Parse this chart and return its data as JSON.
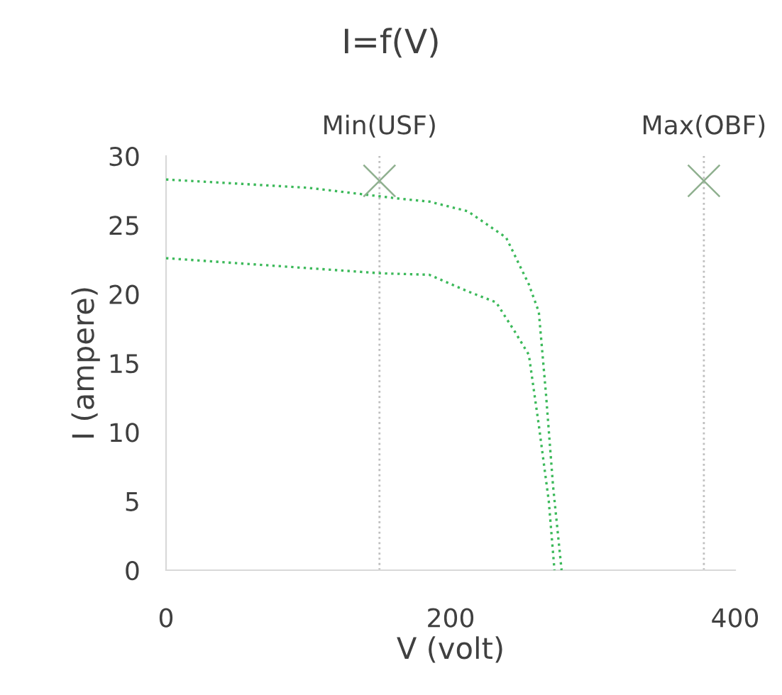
{
  "chart_data": {
    "type": "line",
    "title": "I=f(V)",
    "xlabel": "V (volt)",
    "ylabel": "I (ampere)",
    "xlim": [
      0,
      400
    ],
    "xticks": [
      0,
      200,
      400
    ],
    "ylim": [
      0,
      30
    ],
    "yticks": [
      0,
      5,
      10,
      15,
      20,
      25,
      30
    ],
    "grid": false,
    "legend": false,
    "line_style": "dotted",
    "marker": "none",
    "series": [
      {
        "color": "#3cb95a",
        "x": [
          0,
          100,
          165,
          185,
          212,
          239,
          255,
          262,
          267,
          272,
          278
        ],
        "values": [
          28.3,
          27.7,
          26.9,
          26.7,
          26.0,
          24.1,
          20.7,
          18.7,
          12.8,
          6.1,
          0
        ]
      },
      {
        "color": "#3cb95a",
        "x": [
          0,
          152,
          185,
          212,
          232,
          245,
          255,
          262,
          269,
          273
        ],
        "values": [
          22.6,
          21.5,
          21.4,
          20.2,
          19.4,
          17.3,
          15.6,
          10.5,
          5.0,
          0
        ]
      },
      {
        "type": "scatter",
        "marker": "cross",
        "color": "#8fb08f",
        "x": [
          150,
          378
        ],
        "values": [
          28.2,
          28.2
        ]
      }
    ],
    "ref_lines": [
      {
        "axis": "x",
        "value": 150,
        "label": "Min(USF)",
        "color": "#bfbfbf",
        "line_style": "dotted"
      },
      {
        "axis": "x",
        "value": 378,
        "label": "Max(OBF)",
        "color": "#bfbfbf",
        "line_style": "dotted"
      }
    ]
  }
}
